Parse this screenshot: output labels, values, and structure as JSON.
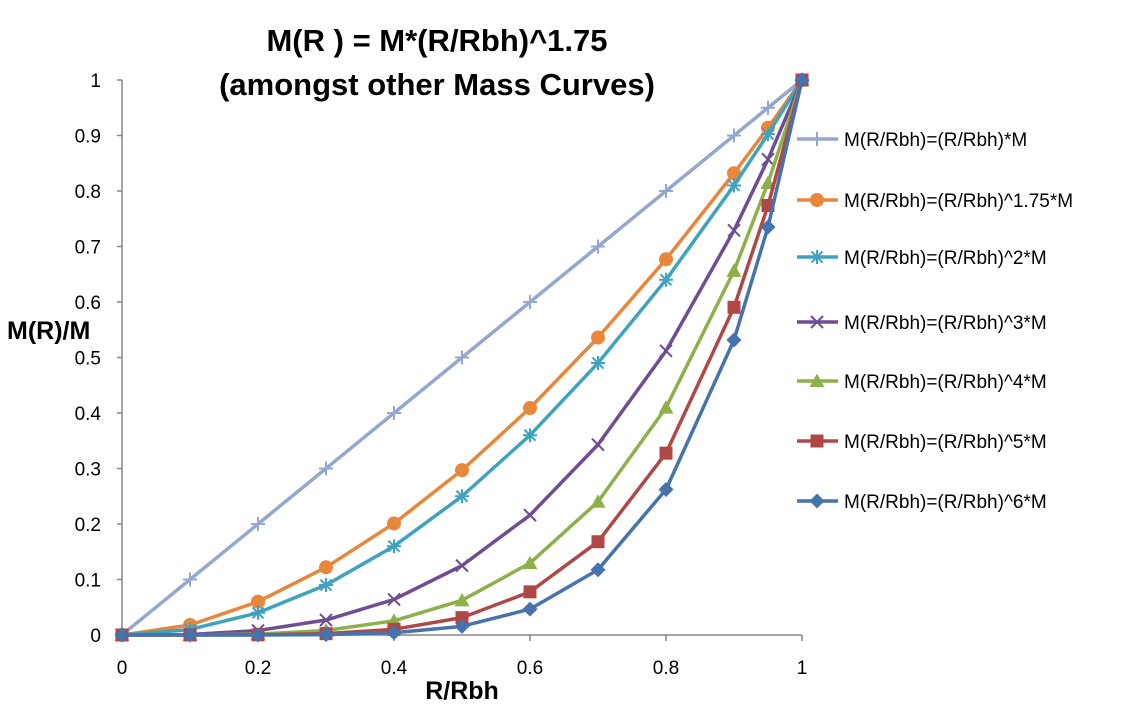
{
  "chart_data": {
    "type": "line",
    "title_line1": "M(R ) = M*(R/Rbh)^1.75",
    "title_line2": "(amongst other Mass Curves)",
    "xlabel": "R/Rbh",
    "ylabel": "M(R)/M",
    "xlim": [
      0,
      1
    ],
    "ylim": [
      0,
      1
    ],
    "x_ticks": [
      "0",
      "0.2",
      "0.4",
      "0.6",
      "0.8",
      "1"
    ],
    "y_ticks": [
      "0",
      "0.1",
      "0.2",
      "0.3",
      "0.4",
      "0.5",
      "0.6",
      "0.7",
      "0.8",
      "0.9",
      "1"
    ],
    "x": [
      0,
      0.1,
      0.2,
      0.3,
      0.4,
      0.5,
      0.6,
      0.7,
      0.8,
      0.9,
      0.95,
      1
    ],
    "legend_position": "right",
    "series": [
      {
        "name": "M(R/Rbh)=(R/Rbh)*M",
        "color": "#95A7CE",
        "marker": "plus",
        "values": [
          0,
          0.1,
          0.2,
          0.3,
          0.4,
          0.5,
          0.6,
          0.7,
          0.8,
          0.9,
          0.95,
          1
        ]
      },
      {
        "name": "M(R/Rbh)=(R/Rbh)^1.75*M",
        "color": "#E8863A",
        "marker": "circle",
        "values": [
          0,
          0.018,
          0.06,
          0.122,
          0.201,
          0.297,
          0.409,
          0.536,
          0.677,
          0.832,
          0.914,
          1
        ]
      },
      {
        "name": "M(R/Rbh)=(R/Rbh)^2*M",
        "color": "#3FA2BE",
        "marker": "star",
        "values": [
          0,
          0.01,
          0.04,
          0.09,
          0.16,
          0.25,
          0.36,
          0.49,
          0.64,
          0.81,
          0.9025,
          1
        ]
      },
      {
        "name": "M(R/Rbh)=(R/Rbh)^3*M",
        "color": "#6E4E93",
        "marker": "x",
        "values": [
          0,
          0.001,
          0.008,
          0.027,
          0.064,
          0.125,
          0.216,
          0.343,
          0.512,
          0.729,
          0.857,
          1
        ]
      },
      {
        "name": "M(R/Rbh)=(R/Rbh)^4*M",
        "color": "#8EB04A",
        "marker": "triangle",
        "values": [
          0,
          0.0001,
          0.0016,
          0.0081,
          0.0256,
          0.0625,
          0.1296,
          0.2401,
          0.4096,
          0.6561,
          0.8145,
          1
        ]
      },
      {
        "name": "M(R/Rbh)=(R/Rbh)^5*M",
        "color": "#B04747",
        "marker": "square",
        "values": [
          0,
          1e-05,
          0.00032,
          0.00243,
          0.01024,
          0.03125,
          0.07776,
          0.16807,
          0.32768,
          0.59049,
          0.7738,
          1
        ]
      },
      {
        "name": "M(R/Rbh)=(R/Rbh)^6*M",
        "color": "#4673AD",
        "marker": "diamond",
        "values": [
          0,
          1e-06,
          6.4e-05,
          0.000729,
          0.004096,
          0.015625,
          0.046656,
          0.117649,
          0.262144,
          0.531441,
          0.7351,
          1
        ]
      }
    ]
  }
}
